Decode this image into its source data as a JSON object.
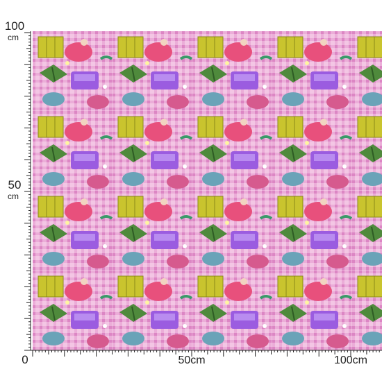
{
  "ruler": {
    "x_labels": [
      {
        "value": 0,
        "label": "0"
      },
      {
        "value": 50,
        "label": "50cm"
      },
      {
        "value": 100,
        "label": "100cm"
      }
    ],
    "y_labels": [
      {
        "value": 100,
        "label": "100",
        "unit": "cm"
      },
      {
        "value": 50,
        "label": "50",
        "unit": "cm"
      }
    ]
  }
}
